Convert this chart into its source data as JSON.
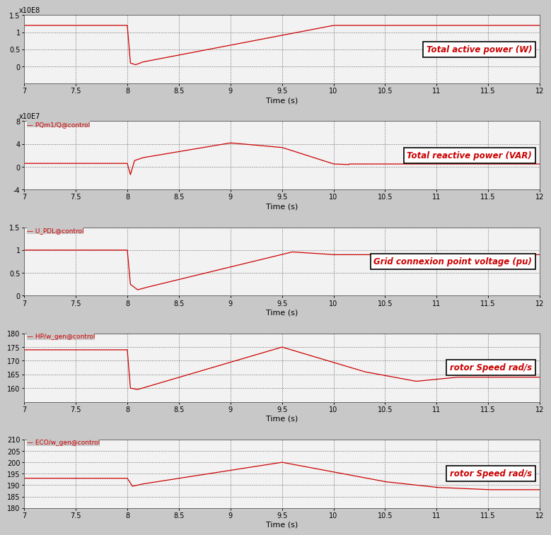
{
  "xlim": [
    7,
    12
  ],
  "xlabel": "Time (s)",
  "xticks": [
    7,
    7.5,
    8,
    8.5,
    9,
    9.5,
    10,
    10.5,
    11,
    11.5,
    12
  ],
  "line_color": "#cc0000",
  "label_color": "#cc0000",
  "fig_bg": "#c8c8c8",
  "plot_bg": "#f2f2f2",
  "subplot1": {
    "ylabel_top": "x10E8",
    "ylim": [
      -0.5,
      1.5
    ],
    "yticks": [
      0,
      0.5,
      1,
      1.5
    ],
    "label": "Total active power (W)",
    "signal_label": null
  },
  "subplot2": {
    "ylabel_top": "x10E7",
    "ylim": [
      -4,
      8
    ],
    "yticks": [
      -4,
      0,
      4,
      8
    ],
    "label": "Total reactive power (VAR)",
    "signal_label": "PQm1/Q@control"
  },
  "subplot3": {
    "ylabel_top": null,
    "ylim": [
      0,
      1.5
    ],
    "yticks": [
      0,
      0.5,
      1,
      1.5
    ],
    "label": "Grid connexion point voltage (pu)",
    "signal_label": "U_PDL@control"
  },
  "subplot4": {
    "ylabel_top": null,
    "ylim": [
      155,
      180
    ],
    "yticks": [
      160,
      165,
      170,
      175,
      180
    ],
    "label": "rotor Speed rad/s",
    "signal_label": "HP/w_gen@control"
  },
  "subplot5": {
    "ylabel_top": null,
    "ylim": [
      180,
      210
    ],
    "yticks": [
      180,
      185,
      190,
      195,
      200,
      205,
      210
    ],
    "label": "rotor Speed rad/s",
    "signal_label": "ECO/w_gen@control"
  }
}
